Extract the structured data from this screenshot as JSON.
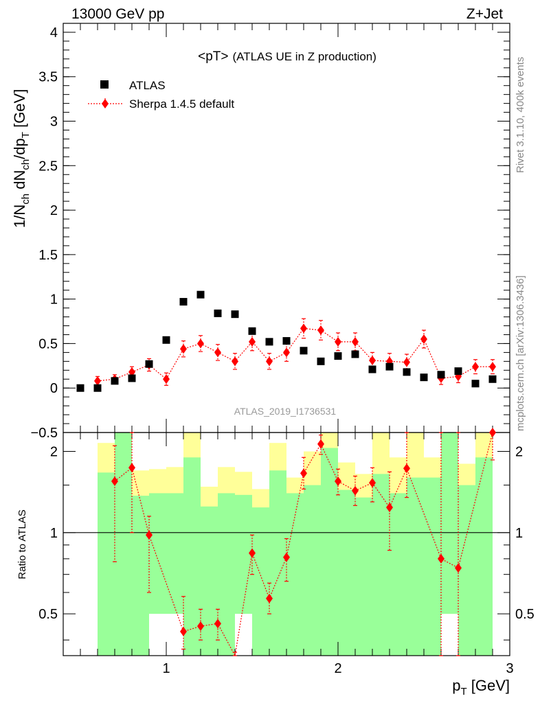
{
  "header": {
    "left": "13000 GeV pp",
    "right": "Z+Jet"
  },
  "side_text": {
    "rivet": "Rivet 3.1.10,  400k events",
    "mcplots": "mcplots.cern.ch [arXiv:1306.3436]"
  },
  "plot_title_main": "<pT>",
  "plot_title_sub": "(ATLAS UE in Z production)",
  "analysis_id": "ATLAS_2019_I1736531",
  "legend": {
    "data_label": "ATLAS",
    "mc_label": "Sherpa 1.4.5 default"
  },
  "colors": {
    "data": "#000000",
    "mc": "#ff0000",
    "band_inner": "#99ff99",
    "band_outer": "#ffff99"
  },
  "chart_data": [
    {
      "type": "scatter",
      "panel": "main",
      "ylabel": "1/N_ch dN_ch/dp_T [GeV]",
      "xlim": [
        0.4,
        3.0
      ],
      "ylim": [
        -0.5,
        4.1
      ],
      "yticks": [
        -0.5,
        0,
        0.5,
        1,
        1.5,
        2,
        2.5,
        3,
        3.5,
        4
      ],
      "ytick_labels": [
        "−0.5",
        "0",
        "0.5",
        "1",
        "1.5",
        "2",
        "2.5",
        "3",
        "3.5",
        "4"
      ],
      "x": [
        0.5,
        0.6,
        0.7,
        0.8,
        0.9,
        1.0,
        1.1,
        1.2,
        1.3,
        1.4,
        1.5,
        1.6,
        1.7,
        1.8,
        1.9,
        2.0,
        2.1,
        2.2,
        2.3,
        2.4,
        2.5,
        2.6,
        2.7,
        2.8,
        2.9
      ],
      "series": [
        {
          "name": "ATLAS",
          "values": [
            0.0,
            0.0,
            0.08,
            0.11,
            0.27,
            0.54,
            0.97,
            1.05,
            0.84,
            0.83,
            0.64,
            0.52,
            0.53,
            0.42,
            0.3,
            0.36,
            0.38,
            0.21,
            0.24,
            0.18,
            0.12,
            0.15,
            0.19,
            0.05,
            0.1
          ]
        },
        {
          "name": "Sherpa 1.4.5 default",
          "values": [
            null,
            0.08,
            0.1,
            0.18,
            0.26,
            0.1,
            0.44,
            0.5,
            0.4,
            0.3,
            0.52,
            0.3,
            0.4,
            0.67,
            0.65,
            0.52,
            0.52,
            0.31,
            0.3,
            0.29,
            0.55,
            0.11,
            0.13,
            0.24,
            0.24
          ],
          "errors": [
            null,
            0.05,
            0.05,
            0.06,
            0.07,
            0.07,
            0.09,
            0.09,
            0.09,
            0.09,
            0.1,
            0.09,
            0.1,
            0.11,
            0.11,
            0.1,
            0.1,
            0.09,
            0.09,
            0.09,
            0.1,
            0.07,
            0.07,
            0.08,
            0.08
          ]
        }
      ]
    },
    {
      "type": "line",
      "panel": "ratio",
      "ylabel": "Ratio to ATLAS",
      "xlabel": "p_T [GeV]",
      "xlim": [
        0.4,
        3.0
      ],
      "ylim": [
        0.35,
        2.35
      ],
      "xticks": [
        1,
        2,
        3
      ],
      "xtick_labels": [
        "1",
        "2",
        "3"
      ],
      "yticks": [
        0.5,
        1,
        2
      ],
      "ytick_labels": [
        "0.5",
        "1",
        "2"
      ],
      "x": [
        0.7,
        0.8,
        0.9,
        1.1,
        1.2,
        1.3,
        1.4,
        1.5,
        1.6,
        1.7,
        1.8,
        1.9,
        2.0,
        2.1,
        2.2,
        2.3,
        2.4,
        2.6,
        2.7,
        2.9
      ],
      "ratio": [
        1.55,
        1.74,
        0.98,
        0.43,
        0.45,
        0.46,
        0.33,
        0.84,
        0.57,
        0.81,
        1.66,
        2.13,
        1.55,
        1.43,
        1.53,
        1.24,
        1.73,
        0.8,
        0.74,
        2.35
      ],
      "ratio_err_low": [
        0.78,
        1.0,
        0.6,
        0.37,
        0.4,
        0.4,
        0.32,
        0.7,
        0.5,
        0.66,
        1.45,
        1.95,
        1.38,
        1.26,
        1.3,
        0.86,
        1.35,
        0.3,
        0.3,
        1.86
      ],
      "ratio_err_high": [
        2.1,
        2.35,
        1.15,
        0.58,
        0.52,
        0.52,
        0.36,
        0.98,
        0.65,
        0.95,
        1.9,
        2.3,
        1.72,
        1.62,
        1.74,
        1.68,
        2.35,
        2.35,
        2.35,
        2.35
      ],
      "bands": {
        "bin_low": [
          0.6,
          0.7,
          0.8,
          0.9,
          1.0,
          1.1,
          1.2,
          1.3,
          1.4,
          1.5,
          1.6,
          1.7,
          1.8,
          1.9,
          2.0,
          2.1,
          2.2,
          2.3,
          2.4,
          2.5,
          2.6,
          2.7,
          2.8
        ],
        "bin_high": [
          0.7,
          0.8,
          0.9,
          1.0,
          1.1,
          1.2,
          1.3,
          1.4,
          1.5,
          1.6,
          1.7,
          1.8,
          1.9,
          2.0,
          2.1,
          2.2,
          2.3,
          2.4,
          2.5,
          2.6,
          2.7,
          2.8,
          2.9
        ],
        "inner_low": [
          0.35,
          0.35,
          0.35,
          0.5,
          0.5,
          0.35,
          0.35,
          0.35,
          0.5,
          0.35,
          0.35,
          0.35,
          0.35,
          0.35,
          0.35,
          0.35,
          0.35,
          0.35,
          0.35,
          0.35,
          0.5,
          0.35,
          0.35
        ],
        "inner_high": [
          1.67,
          2.35,
          1.37,
          1.4,
          1.4,
          1.9,
          1.25,
          1.4,
          1.38,
          1.24,
          1.7,
          1.4,
          1.5,
          2.06,
          1.44,
          1.35,
          1.65,
          1.4,
          1.6,
          1.6,
          2.35,
          1.5,
          1.9
        ],
        "outer_low": [
          0.35,
          0.35,
          0.35,
          0.72,
          0.7,
          0.35,
          0.35,
          0.62,
          0.7,
          0.6,
          0.35,
          0.65,
          0.6,
          0.35,
          0.35,
          0.35,
          0.65,
          0.35,
          0.54,
          0.35,
          0.5,
          0.35,
          0.35
        ],
        "outer_high": [
          2.15,
          2.35,
          1.7,
          1.72,
          1.75,
          2.35,
          1.48,
          1.75,
          1.68,
          1.45,
          2.15,
          1.6,
          2.0,
          2.35,
          1.82,
          1.65,
          2.35,
          1.9,
          2.35,
          1.9,
          2.35,
          1.8,
          2.35
        ]
      }
    }
  ]
}
